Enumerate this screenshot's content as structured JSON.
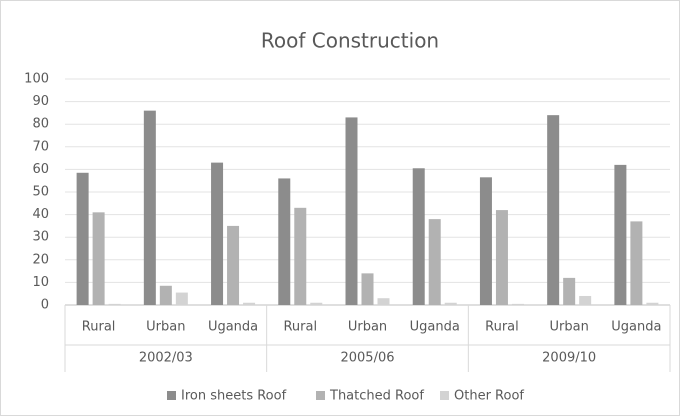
{
  "chart_data": {
    "type": "bar",
    "title": "Roof Construction",
    "categories": [
      "Rural",
      "Urban",
      "Uganda",
      "Rural",
      "Urban",
      "Uganda",
      "Rural",
      "Urban",
      "Uganda"
    ],
    "groups": [
      "2002/03",
      "2005/06",
      "2009/10"
    ],
    "series": [
      {
        "name": "Iron sheets Roof",
        "color": "#8c8c8c",
        "values": [
          58.5,
          86,
          63,
          56,
          83,
          60.5,
          56.5,
          84,
          62
        ]
      },
      {
        "name": "Thatched Roof",
        "color": "#b2b2b2",
        "values": [
          41,
          8.5,
          35,
          43,
          14,
          38,
          42,
          12,
          37
        ]
      },
      {
        "name": "Other Roof",
        "color": "#d3d3d3",
        "values": [
          0.5,
          5.5,
          1,
          1,
          3,
          1,
          0.5,
          4,
          1
        ]
      }
    ],
    "ylim": [
      0,
      100
    ],
    "yticks": [
      0,
      10,
      20,
      30,
      40,
      50,
      60,
      70,
      80,
      90,
      100
    ],
    "grid": true,
    "legend": "bottom"
  }
}
